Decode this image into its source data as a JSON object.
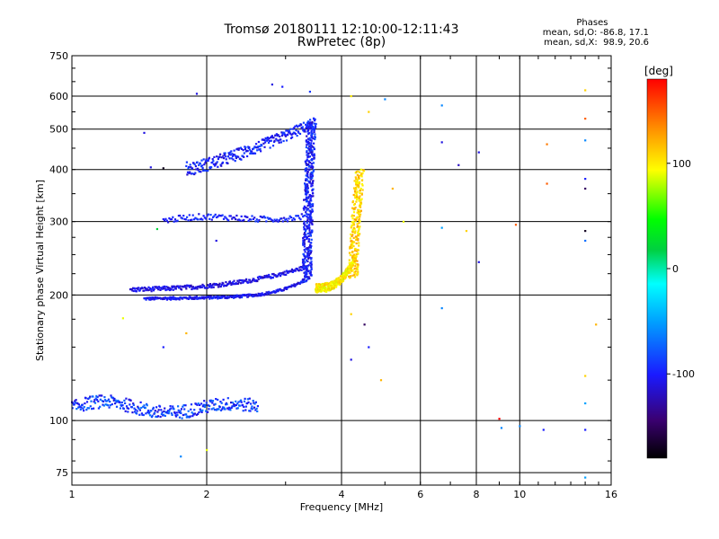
{
  "chart_data": {
    "type": "scatter",
    "title": "Tromsø 20180111 12:10:00-12:11:43",
    "subtitle": "RwPretec (8p)",
    "xlabel": "Frequency [MHz]",
    "ylabel": "Stationary phase Virtual Height [km]",
    "x_scale": "log",
    "y_scale": "log",
    "xlim": [
      1,
      16
    ],
    "ylim": [
      70,
      750
    ],
    "x_ticks": [
      "1",
      "2",
      "4",
      "6",
      "8",
      "10",
      "16"
    ],
    "y_ticks": [
      "75",
      "100",
      "200",
      "300",
      "400",
      "500",
      "600",
      "750"
    ],
    "grid": true,
    "stats": {
      "heading": "Phases",
      "line_o": "mean, sd,O: -86.8, 17.1",
      "line_x": "mean, sd,X:  98.9, 20.6"
    },
    "colorbar": {
      "label": "[deg]",
      "range": [
        -180,
        180
      ],
      "ticks": [
        "100",
        "0",
        "-100"
      ],
      "tick_values": [
        100,
        0,
        -100
      ]
    },
    "traces": [
      {
        "name": "F2 O-mode lower",
        "phase": -100,
        "x_range": [
          1.45,
          3.3
        ],
        "y_range": [
          195,
          213
        ]
      },
      {
        "name": "F2 O-mode upper",
        "phase": -110,
        "x_range": [
          1.35,
          3.35
        ],
        "y_range": [
          205,
          235
        ]
      },
      {
        "name": "F2 O-mode cusp",
        "phase": -100,
        "x_range": [
          3.3,
          3.55
        ],
        "y_range": [
          215,
          520
        ]
      },
      {
        "name": "F1 trace",
        "phase": -100,
        "x_range": [
          1.6,
          3.3
        ],
        "y_range": [
          300,
          330
        ]
      },
      {
        "name": "Upper trace",
        "phase": -100,
        "x_range": [
          1.8,
          3.5
        ],
        "y_range": [
          400,
          560
        ]
      },
      {
        "name": "E trace",
        "phase": -90,
        "x_range": [
          1.0,
          2.6
        ],
        "y_range": [
          103,
          118
        ]
      },
      {
        "name": "F2 X-mode",
        "phase": 100,
        "x_range": [
          3.5,
          4.6
        ],
        "y_range": [
          205,
          400
        ]
      }
    ],
    "scattered_points": [
      {
        "x": 1.9,
        "y": 608,
        "phase": -110
      },
      {
        "x": 2.8,
        "y": 640,
        "phase": -110
      },
      {
        "x": 2.95,
        "y": 632,
        "phase": -100
      },
      {
        "x": 3.4,
        "y": 615,
        "phase": -90
      },
      {
        "x": 4.2,
        "y": 600,
        "phase": 100
      },
      {
        "x": 4.6,
        "y": 550,
        "phase": 110
      },
      {
        "x": 5.0,
        "y": 590,
        "phase": -60
      },
      {
        "x": 6.7,
        "y": 570,
        "phase": -60
      },
      {
        "x": 6.7,
        "y": 465,
        "phase": -110
      },
      {
        "x": 7.3,
        "y": 410,
        "phase": -120
      },
      {
        "x": 8.1,
        "y": 440,
        "phase": -110
      },
      {
        "x": 8.1,
        "y": 240,
        "phase": -110
      },
      {
        "x": 7.6,
        "y": 285,
        "phase": 110
      },
      {
        "x": 9.8,
        "y": 295,
        "phase": 150
      },
      {
        "x": 11.5,
        "y": 460,
        "phase": 140
      },
      {
        "x": 11.5,
        "y": 370,
        "phase": 150
      },
      {
        "x": 14.0,
        "y": 620,
        "phase": 110
      },
      {
        "x": 14.0,
        "y": 530,
        "phase": 150
      },
      {
        "x": 14.0,
        "y": 470,
        "phase": -60
      },
      {
        "x": 14.0,
        "y": 380,
        "phase": -100
      },
      {
        "x": 14.0,
        "y": 360,
        "phase": -150
      },
      {
        "x": 14.0,
        "y": 285,
        "phase": -170
      },
      {
        "x": 14.0,
        "y": 270,
        "phase": -70
      },
      {
        "x": 14.0,
        "y": 128,
        "phase": 110
      },
      {
        "x": 14.0,
        "y": 110,
        "phase": -50
      },
      {
        "x": 14.0,
        "y": 95,
        "phase": -100
      },
      {
        "x": 14.8,
        "y": 170,
        "phase": 120
      },
      {
        "x": 5.2,
        "y": 360,
        "phase": 120
      },
      {
        "x": 5.5,
        "y": 300,
        "phase": 90
      },
      {
        "x": 4.2,
        "y": 180,
        "phase": 110
      },
      {
        "x": 4.5,
        "y": 170,
        "phase": -150
      },
      {
        "x": 4.2,
        "y": 140,
        "phase": -110
      },
      {
        "x": 4.6,
        "y": 150,
        "phase": -100
      },
      {
        "x": 4.9,
        "y": 125,
        "phase": 120
      },
      {
        "x": 6.7,
        "y": 186,
        "phase": -60
      },
      {
        "x": 9.0,
        "y": 101,
        "phase": 180
      },
      {
        "x": 9.1,
        "y": 96,
        "phase": -60
      },
      {
        "x": 10.0,
        "y": 97,
        "phase": -60
      },
      {
        "x": 11.3,
        "y": 95,
        "phase": -100
      },
      {
        "x": 1.3,
        "y": 176,
        "phase": 90
      },
      {
        "x": 1.8,
        "y": 162,
        "phase": 120
      },
      {
        "x": 1.75,
        "y": 82,
        "phase": -60
      },
      {
        "x": 2.0,
        "y": 85,
        "phase": 90
      },
      {
        "x": 1.6,
        "y": 150,
        "phase": -100
      },
      {
        "x": 1.45,
        "y": 490,
        "phase": -110
      },
      {
        "x": 1.5,
        "y": 405,
        "phase": -110
      },
      {
        "x": 1.6,
        "y": 403,
        "phase": -170
      },
      {
        "x": 1.55,
        "y": 288,
        "phase": 20
      },
      {
        "x": 2.1,
        "y": 270,
        "phase": -110
      },
      {
        "x": 6.7,
        "y": 290,
        "phase": -50
      },
      {
        "x": 14.0,
        "y": 73,
        "phase": -50
      }
    ]
  }
}
